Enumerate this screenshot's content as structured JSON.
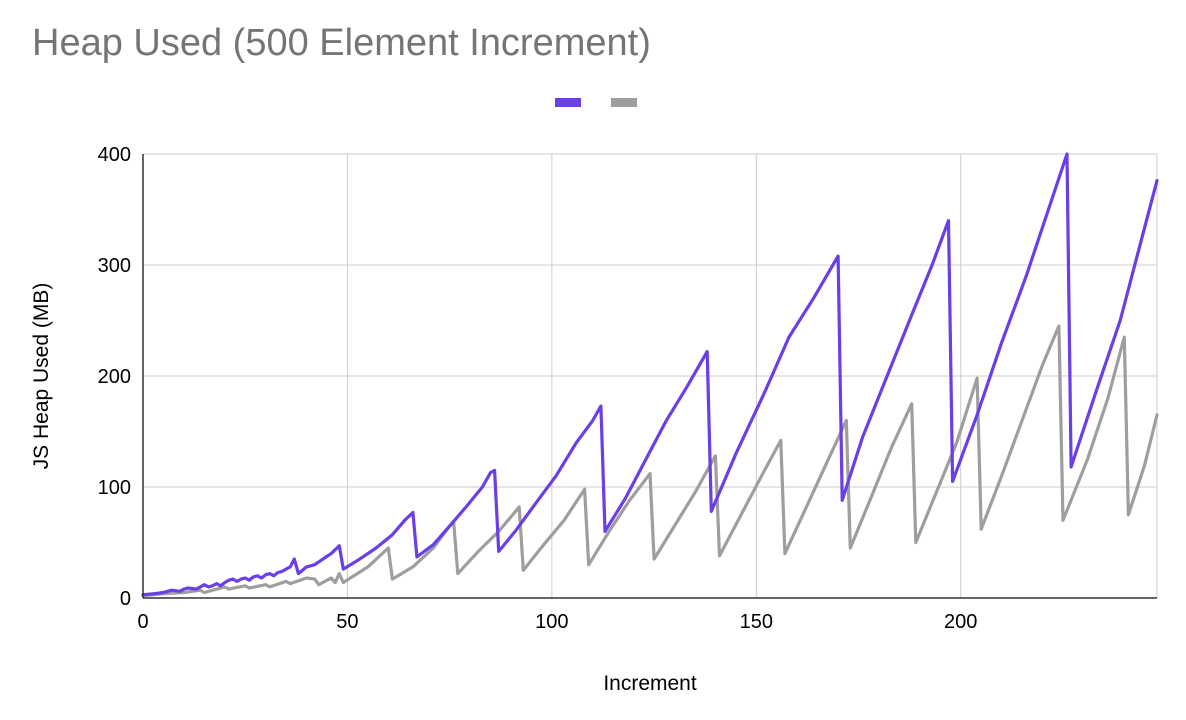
{
  "chart_data": {
    "type": "line",
    "title": "Heap Used (500 Element Increment)",
    "xlabel": "Increment",
    "ylabel": "JS Heap Used (MB)",
    "xlim": [
      0,
      248
    ],
    "ylim": [
      0,
      400
    ],
    "x_ticks": [
      0,
      50,
      100,
      150,
      200
    ],
    "y_ticks": [
      0,
      100,
      200,
      300,
      400
    ],
    "x_tick_labels": [
      "0",
      "50",
      "100",
      "150",
      "200"
    ],
    "y_tick_labels": [
      "0",
      "100",
      "200",
      "300",
      "400"
    ],
    "grid": true,
    "legend_position": "top-center",
    "series": [
      {
        "color": "#6a3ee8",
        "points": [
          [
            0,
            3
          ],
          [
            3,
            4
          ],
          [
            5,
            5
          ],
          [
            7,
            7
          ],
          [
            9,
            6
          ],
          [
            10,
            8
          ],
          [
            11,
            9
          ],
          [
            13,
            8
          ],
          [
            15,
            12
          ],
          [
            16,
            10
          ],
          [
            17,
            11
          ],
          [
            18,
            13
          ],
          [
            19,
            11
          ],
          [
            20,
            14
          ],
          [
            21,
            16
          ],
          [
            22,
            17
          ],
          [
            23,
            15
          ],
          [
            24,
            17
          ],
          [
            25,
            18
          ],
          [
            26,
            16
          ],
          [
            27,
            19
          ],
          [
            28,
            20
          ],
          [
            29,
            18
          ],
          [
            30,
            21
          ],
          [
            31,
            22
          ],
          [
            32,
            20
          ],
          [
            33,
            23
          ],
          [
            34,
            24
          ],
          [
            35,
            26
          ],
          [
            36,
            28
          ],
          [
            37,
            35
          ],
          [
            38,
            22
          ],
          [
            40,
            28
          ],
          [
            42,
            30
          ],
          [
            44,
            35
          ],
          [
            46,
            40
          ],
          [
            48,
            47
          ],
          [
            49,
            26
          ],
          [
            53,
            35
          ],
          [
            57,
            45
          ],
          [
            61,
            57
          ],
          [
            64,
            70
          ],
          [
            66,
            77
          ],
          [
            67,
            37
          ],
          [
            71,
            48
          ],
          [
            75,
            65
          ],
          [
            79,
            82
          ],
          [
            83,
            100
          ],
          [
            85,
            113
          ],
          [
            86,
            115
          ],
          [
            87,
            42
          ],
          [
            91,
            60
          ],
          [
            96,
            85
          ],
          [
            101,
            110
          ],
          [
            106,
            140
          ],
          [
            110,
            160
          ],
          [
            112,
            173
          ],
          [
            113,
            60
          ],
          [
            118,
            90
          ],
          [
            123,
            125
          ],
          [
            128,
            160
          ],
          [
            133,
            190
          ],
          [
            138,
            222
          ],
          [
            139,
            78
          ],
          [
            145,
            130
          ],
          [
            152,
            185
          ],
          [
            158,
            235
          ],
          [
            164,
            270
          ],
          [
            170,
            308
          ],
          [
            171,
            88
          ],
          [
            176,
            145
          ],
          [
            182,
            200
          ],
          [
            188,
            255
          ],
          [
            193,
            300
          ],
          [
            197,
            340
          ],
          [
            198,
            105
          ],
          [
            204,
            165
          ],
          [
            210,
            230
          ],
          [
            216,
            290
          ],
          [
            221,
            345
          ],
          [
            226,
            400
          ],
          [
            227,
            118
          ],
          [
            233,
            185
          ],
          [
            239,
            250
          ],
          [
            244,
            320
          ],
          [
            248,
            376
          ]
        ]
      },
      {
        "color": "#9e9e9e",
        "points": [
          [
            0,
            2
          ],
          [
            5,
            4
          ],
          [
            10,
            5
          ],
          [
            14,
            7
          ],
          [
            15,
            5
          ],
          [
            20,
            10
          ],
          [
            21,
            8
          ],
          [
            25,
            11
          ],
          [
            26,
            9
          ],
          [
            30,
            12
          ],
          [
            31,
            10
          ],
          [
            35,
            15
          ],
          [
            36,
            13
          ],
          [
            40,
            18
          ],
          [
            42,
            17
          ],
          [
            43,
            12
          ],
          [
            46,
            18
          ],
          [
            47,
            14
          ],
          [
            48,
            22
          ],
          [
            49,
            14
          ],
          [
            55,
            28
          ],
          [
            60,
            45
          ],
          [
            61,
            17
          ],
          [
            66,
            28
          ],
          [
            71,
            45
          ],
          [
            75,
            65
          ],
          [
            76,
            68
          ],
          [
            77,
            22
          ],
          [
            82,
            42
          ],
          [
            87,
            60
          ],
          [
            92,
            82
          ],
          [
            93,
            25
          ],
          [
            98,
            48
          ],
          [
            103,
            70
          ],
          [
            108,
            98
          ],
          [
            109,
            30
          ],
          [
            114,
            60
          ],
          [
            119,
            88
          ],
          [
            124,
            112
          ],
          [
            125,
            35
          ],
          [
            130,
            65
          ],
          [
            135,
            95
          ],
          [
            140,
            128
          ],
          [
            141,
            38
          ],
          [
            147,
            80
          ],
          [
            152,
            115
          ],
          [
            156,
            142
          ],
          [
            157,
            40
          ],
          [
            162,
            80
          ],
          [
            167,
            120
          ],
          [
            172,
            160
          ],
          [
            173,
            45
          ],
          [
            178,
            90
          ],
          [
            183,
            135
          ],
          [
            188,
            175
          ],
          [
            189,
            50
          ],
          [
            194,
            95
          ],
          [
            199,
            140
          ],
          [
            204,
            198
          ],
          [
            205,
            62
          ],
          [
            210,
            110
          ],
          [
            215,
            160
          ],
          [
            220,
            210
          ],
          [
            224,
            245
          ],
          [
            225,
            70
          ],
          [
            231,
            125
          ],
          [
            236,
            180
          ],
          [
            240,
            235
          ],
          [
            241,
            75
          ],
          [
            245,
            120
          ],
          [
            248,
            165
          ]
        ]
      }
    ]
  }
}
